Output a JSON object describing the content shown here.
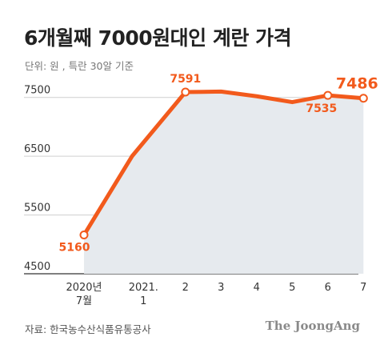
{
  "title": "6개월째 7000원대인 계란 가격",
  "unit_note": "단위: 원 , 특란 30알 기준",
  "source": "자료: 한국농수산식품유통공사",
  "publisher": "The JoongAng",
  "colors": {
    "line": "#f25a1c",
    "area": "#e6eaee",
    "axis": "#333333",
    "text": "#333333",
    "label": "#f25a1c"
  },
  "chart_data": {
    "type": "area",
    "title": "6개월째 7000원대인 계란 가격",
    "ylabel": "",
    "xlabel": "",
    "ylim": [
      4500,
      8000
    ],
    "yticks": [
      4500,
      5500,
      6500,
      7500
    ],
    "ytick_labels": [
      "4500",
      "5500",
      "6500",
      "7500"
    ],
    "categories": [
      [
        "2020년",
        "7월"
      ],
      [
        "2021.",
        "1"
      ],
      [
        "2"
      ],
      [
        "3"
      ],
      [
        "4"
      ],
      [
        "5"
      ],
      [
        "6"
      ],
      [
        "7"
      ]
    ],
    "x_index": [
      0,
      1.85,
      2.85,
      3.85,
      4.85,
      5.85,
      6.85,
      7.85
    ],
    "points": [
      {
        "x": 0,
        "y": 5160,
        "label": "5160"
      },
      {
        "x": 1.35,
        "y": 6500
      },
      {
        "x": 2.85,
        "y": 7591,
        "label": "7591"
      },
      {
        "x": 3.85,
        "y": 7600
      },
      {
        "x": 4.85,
        "y": 7520
      },
      {
        "x": 5.85,
        "y": 7420
      },
      {
        "x": 6.85,
        "y": 7535,
        "label": "7535"
      },
      {
        "x": 7.85,
        "y": 7486,
        "label": "7486",
        "emphasis": true
      }
    ],
    "marked_points": [
      0,
      2,
      6,
      7
    ]
  }
}
